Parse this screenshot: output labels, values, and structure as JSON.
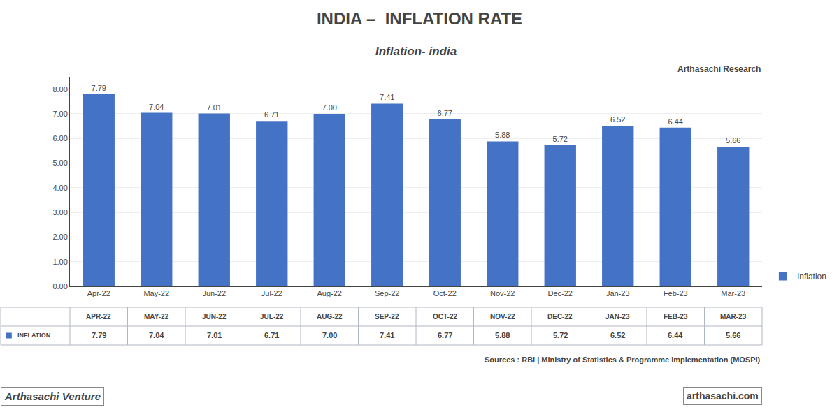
{
  "chart_data": {
    "type": "bar",
    "title": "INDIA –  INFLATION RATE",
    "subtitle": "Inflation- india",
    "categories": [
      "Apr-22",
      "May-22",
      "Jun-22",
      "Jul-22",
      "Aug-22",
      "Sep-22",
      "Oct-22",
      "Nov-22",
      "Dec-22",
      "Jan-23",
      "Feb-23",
      "Mar-23"
    ],
    "series": [
      {
        "name": "Inflation",
        "color": "#4472C4",
        "values": [
          7.79,
          7.04,
          7.01,
          6.71,
          7.0,
          7.41,
          6.77,
          5.88,
          5.72,
          6.52,
          6.44,
          5.66
        ],
        "value_labels": [
          "7.79",
          "7.04",
          "7.01",
          "6.71",
          "7.00",
          "7.41",
          "6.77",
          "5.88",
          "5.72",
          "6.52",
          "6.44",
          "5.66"
        ]
      }
    ],
    "data_labels": true,
    "ylim": [
      0.0,
      8.5
    ],
    "yticks": [
      {
        "value": 0.0,
        "label": "0.00"
      },
      {
        "value": 1.0,
        "label": "1.00"
      },
      {
        "value": 2.0,
        "label": "2.00"
      },
      {
        "value": 3.0,
        "label": "3.00"
      },
      {
        "value": 4.0,
        "label": "4.00"
      },
      {
        "value": 5.0,
        "label": "5.00"
      },
      {
        "value": 6.0,
        "label": "6.00"
      },
      {
        "value": 7.0,
        "label": "7.00"
      },
      {
        "value": 8.0,
        "label": "8.00"
      }
    ],
    "grid": true,
    "legend": "lower right",
    "annotations": [
      "Arthasachi Research",
      "Sources : RBI | Ministry of Statistics & Programme Implementation (MOSPI)",
      "Arthasachi Venture",
      "arthasachi.com"
    ],
    "table": {
      "columns": [
        "APR-22",
        "MAY-22",
        "JUN-22",
        "JUL-22",
        "AUG-22",
        "SEP-22",
        "OCT-22",
        "NOV-22",
        "DEC-22",
        "JAN-23",
        "FEB-23",
        "MAR-23"
      ],
      "rows": [
        {
          "name": "INFLATION",
          "color": "#4472C4",
          "labels": [
            "7.79",
            "7.04",
            "7.01",
            "6.71",
            "7.00",
            "7.41",
            "6.77",
            "5.88",
            "5.72",
            "6.52",
            "6.44",
            "5.66"
          ]
        }
      ]
    }
  }
}
